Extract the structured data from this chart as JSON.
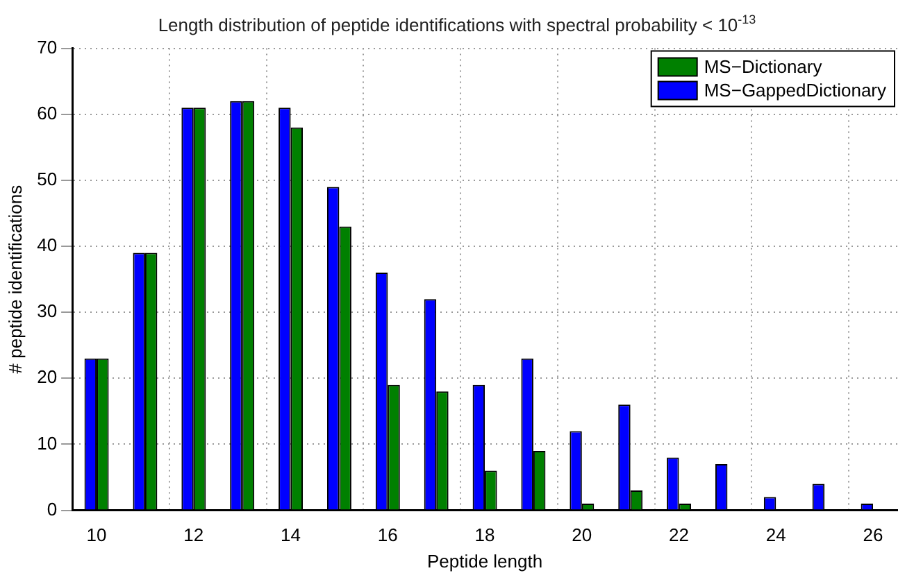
{
  "chart_data": {
    "type": "bar",
    "title": "Length distribution of peptide identifications with spectral probability < 10$^{-13}$",
    "xlabel": "Peptide length",
    "ylabel": "# peptide identifications",
    "categories": [
      "10",
      null,
      "12",
      null,
      "14",
      null,
      "16",
      null,
      "18",
      null,
      "20",
      null,
      "22",
      null,
      "24",
      null,
      "26"
    ],
    "series": [
      {
        "name": "MS−GappedDictionary",
        "color": "#0000ff",
        "values": [
          23,
          39,
          61,
          62,
          61,
          49,
          36,
          32,
          19,
          23,
          12,
          16,
          8,
          7,
          2,
          4,
          1
        ]
      },
      {
        "name": "MS−Dictionary",
        "color": "#008000",
        "values": [
          23,
          39,
          61,
          62,
          58,
          43,
          19,
          18,
          6,
          9,
          1,
          3,
          1,
          0,
          0,
          0,
          0
        ]
      }
    ],
    "ylim": [
      0,
      70
    ],
    "yticks": [
      0,
      10,
      20,
      30,
      40,
      50,
      60,
      70
    ],
    "grid": true,
    "legend": "top right"
  }
}
